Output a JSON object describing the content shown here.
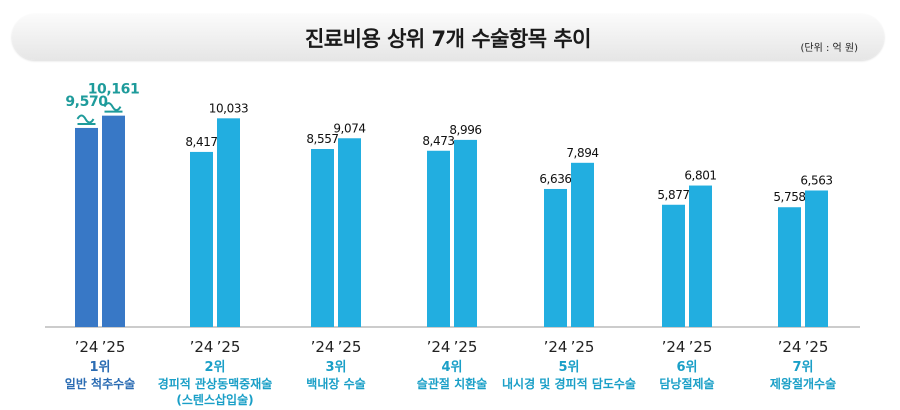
{
  "title": "진료비용 상위 7개 수술항목 추이",
  "unit_note": "(단위 : 억 원)",
  "colors": {
    "bar_first": "#3878c6",
    "bar_other": "#22aee0",
    "accent": "#1e9b9b",
    "category": "#1a9fc7"
  },
  "chart_data": {
    "type": "bar",
    "title": "진료비용 상위 7개 수술항목 추이",
    "unit": "억 원",
    "series_labels": [
      "’24",
      "’25"
    ],
    "groups": [
      {
        "rank": "1위",
        "lines": [
          "일반 척추수술"
        ],
        "values": [
          9570,
          10161
        ],
        "labels": [
          "9,570",
          "10,161"
        ]
      },
      {
        "rank": "2위",
        "lines": [
          "경피적 관상동맥중재술",
          "(스텐스삽입술)"
        ],
        "values": [
          8417,
          10033
        ],
        "labels": [
          "8,417",
          "10,033"
        ]
      },
      {
        "rank": "3위",
        "lines": [
          "백내장 수술"
        ],
        "values": [
          8557,
          9074
        ],
        "labels": [
          "8,557",
          "9,074"
        ]
      },
      {
        "rank": "4위",
        "lines": [
          "슬관절 치환술"
        ],
        "values": [
          8473,
          8996
        ],
        "labels": [
          "8,473",
          "8,996"
        ]
      },
      {
        "rank": "5위",
        "lines": [
          "내시경 및 경피적 담도수술"
        ],
        "values": [
          6636,
          7894
        ],
        "labels": [
          "6,636",
          "7,894"
        ]
      },
      {
        "rank": "6위",
        "lines": [
          "담낭절제술"
        ],
        "values": [
          5877,
          6801
        ],
        "labels": [
          "5,877",
          "6,801"
        ]
      },
      {
        "rank": "7위",
        "lines": [
          "제왕절개수술"
        ],
        "values": [
          5758,
          6563
        ],
        "labels": [
          "5,758",
          "6,563"
        ]
      }
    ],
    "highlight_icon": "spine-icon"
  }
}
